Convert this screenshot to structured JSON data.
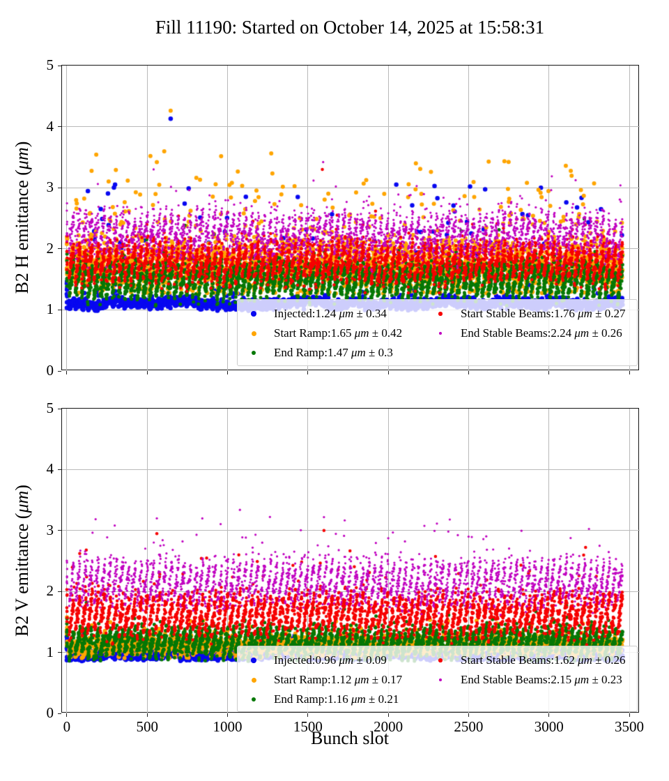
{
  "title": "Fill 11190: Started on October 14, 2025 at 15:58:31",
  "xlabel": "Bunch slot",
  "chart_data": [
    {
      "type": "scatter",
      "subplot": "top",
      "ylabel": "B2 H emittance (μm)",
      "ylabel_prefix": "B2 H emittance (",
      "ylabel_unit": "μm",
      "ylabel_suffix": ")",
      "xlabel": "",
      "xlim": [
        -30,
        3565
      ],
      "ylim": [
        0,
        5
      ],
      "xticks": [
        0,
        500,
        1000,
        1500,
        2000,
        2500,
        3000,
        3500
      ],
      "yticks": [
        0,
        1,
        2,
        3,
        4,
        5
      ],
      "grid": true,
      "legend_position": "lower right",
      "legend_columns": 2,
      "unit": "μm",
      "series": [
        {
          "name": "Injected",
          "mean": "1.24",
          "std": "0.34",
          "legend_text": "Injected:1.24 μm ± 0.34",
          "color": "#0808f0",
          "marker_size": 6.5,
          "gen": {
            "base": 1.1,
            "saw": 0.06,
            "noise": 0.035,
            "jitter": 0.045,
            "tail_frac": 0.055,
            "tail": 1.9,
            "floor": 1.0,
            "outliers": [
              [
                646,
                4.13
              ],
              [
                300,
                3.05
              ],
              [
                2050,
                3.05
              ],
              [
                2950,
                3.0
              ]
            ]
          }
        },
        {
          "name": "Start Ramp",
          "mean": "1.65",
          "std": "0.42",
          "legend_text": "Start Ramp:1.65 μm ± 0.42",
          "color": "#ffa500",
          "marker_size": 6,
          "gen": {
            "base": 1.7,
            "saw": 0.25,
            "noise": 0.2,
            "jitter": 0.05,
            "tail_frac": 0.1,
            "tail": 1.6,
            "floor": 1.28,
            "outliers": [
              [
                646,
                4.26
              ],
              [
                520,
                3.52
              ],
              [
                560,
                3.42
              ]
            ]
          }
        },
        {
          "name": "End Ramp",
          "mean": "1.47",
          "std": "0.3",
          "legend_text": "End Ramp:1.47 μm ± 0.3",
          "color": "#067806",
          "marker_size": 5,
          "gen": {
            "base": 1.46,
            "saw": 0.46,
            "noise": 0.085,
            "jitter": 0.05,
            "tail_frac": 0.02,
            "tail": 0.7,
            "floor": 1.07,
            "outliers": []
          }
        },
        {
          "name": "Start Stable Beams",
          "mean": "1.76",
          "std": "0.27",
          "legend_text": "Start Stable Beams:1.76 μm ± 0.27",
          "color": "#f60000",
          "marker_size": 4.5,
          "gen": {
            "base": 1.76,
            "saw": 0.5,
            "noise": 0.1,
            "jitter": 0.05,
            "tail_frac": 0.03,
            "tail": 0.65,
            "floor": 1.27,
            "outliers": [
              [
                1590,
                3.3
              ]
            ]
          }
        },
        {
          "name": "End Stable Beams",
          "mean": "2.24",
          "std": "0.26",
          "legend_text": "End Stable Beams:2.24 μm ± 0.26",
          "color": "#c000c0",
          "marker_size": 3.2,
          "gen": {
            "base": 2.23,
            "saw": 0.5,
            "noise": 0.12,
            "jitter": 0.06,
            "tail_frac": 0.04,
            "tail": 0.85,
            "floor": 1.62,
            "outliers": [
              [
                1595,
                3.42
              ],
              [
                540,
                3.3
              ]
            ]
          }
        }
      ]
    },
    {
      "type": "scatter",
      "subplot": "bottom",
      "ylabel": "B2 V emittance (μm)",
      "ylabel_prefix": "B2 V emittance (",
      "ylabel_unit": "μm",
      "ylabel_suffix": ")",
      "xlabel": "Bunch slot",
      "xlim": [
        -30,
        3565
      ],
      "ylim": [
        0,
        5
      ],
      "xticks": [
        0,
        500,
        1000,
        1500,
        2000,
        2500,
        3000,
        3500
      ],
      "yticks": [
        0,
        1,
        2,
        3,
        4,
        5
      ],
      "grid": true,
      "legend_position": "lower right",
      "legend_columns": 2,
      "unit": "μm",
      "series": [
        {
          "name": "Injected",
          "mean": "0.96",
          "std": "0.09",
          "legend_text": "Injected:0.96 μm ± 0.09",
          "color": "#0808f0",
          "marker_size": 6.5,
          "gen": {
            "base": 0.95,
            "saw": 0.04,
            "noise": 0.03,
            "jitter": 0.03,
            "tail_frac": 0.012,
            "tail": 0.35,
            "floor": 0.87,
            "outliers": []
          }
        },
        {
          "name": "Start Ramp",
          "mean": "1.12",
          "std": "0.17",
          "legend_text": "Start Ramp:1.12 μm ± 0.17",
          "color": "#ffa500",
          "marker_size": 6,
          "gen": {
            "base": 1.1,
            "saw": 0.16,
            "noise": 0.075,
            "jitter": 0.04,
            "tail_frac": 0.03,
            "tail": 0.4,
            "floor": 0.92,
            "outliers": []
          }
        },
        {
          "name": "End Ramp",
          "mean": "1.16",
          "std": "0.21",
          "legend_text": "End Ramp:1.16 μm ± 0.21",
          "color": "#067806",
          "marker_size": 5,
          "gen": {
            "base": 1.15,
            "saw": 0.36,
            "noise": 0.075,
            "jitter": 0.045,
            "tail_frac": 0.02,
            "tail": 0.45,
            "floor": 0.87,
            "outliers": []
          }
        },
        {
          "name": "Start Stable Beams",
          "mean": "1.62",
          "std": "0.26",
          "legend_text": "Start Stable Beams:1.62 μm ± 0.26",
          "color": "#f60000",
          "marker_size": 4.5,
          "gen": {
            "base": 1.6,
            "saw": 0.55,
            "noise": 0.095,
            "jitter": 0.05,
            "tail_frac": 0.035,
            "tail": 0.95,
            "floor": 1.1,
            "outliers": [
              [
                1600,
                3.0
              ],
              [
                560,
                2.95
              ]
            ]
          }
        },
        {
          "name": "End Stable Beams",
          "mean": "2.15",
          "std": "0.23",
          "legend_text": "End Stable Beams:2.15 μm ± 0.23",
          "color": "#c000c0",
          "marker_size": 3.2,
          "gen": {
            "base": 2.12,
            "saw": 0.6,
            "noise": 0.1,
            "jitter": 0.05,
            "tail_frac": 0.05,
            "tail": 0.95,
            "floor": 1.55,
            "outliers": [
              [
                1600,
                3.22
              ],
              [
                560,
                3.2
              ],
              [
                2500,
                2.9
              ]
            ]
          }
        }
      ]
    }
  ],
  "bunch_structure": {
    "lone_cluster_start": 0,
    "lone_cluster_count": 8,
    "trains": 30,
    "train_start": 14,
    "train_period": 115,
    "subtrains_per_train": 3,
    "bunches_per_subtrain": 32,
    "subtrain_gap": 7
  }
}
